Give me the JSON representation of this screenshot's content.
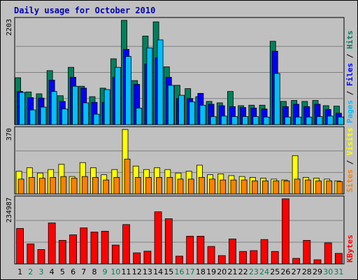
{
  "chart_data": {
    "type": "bar",
    "title": "Daily usage for October 2010",
    "days": [
      "1",
      "2",
      "3",
      "4",
      "5",
      "6",
      "7",
      "8",
      "9",
      "10",
      "11",
      "12",
      "13",
      "14",
      "15",
      "16",
      "17",
      "18",
      "19",
      "20",
      "21",
      "22",
      "23",
      "24",
      "25",
      "26",
      "27",
      "28",
      "29",
      "30",
      "31"
    ],
    "weekend_days": [
      "2",
      "3",
      "9",
      "10",
      "16",
      "17",
      "23",
      "24",
      "30",
      "31"
    ],
    "colors": {
      "hits": "#00805c",
      "files": "#0000ff",
      "pages": "#00c0ff",
      "visits": "#ffff00",
      "sites": "#ff8000",
      "kbytes": "#ff0000",
      "weekday_label": "#000000",
      "weekend_label": "#00805c",
      "title": "#0000b0",
      "background": "#c0c0c0"
    },
    "panels": [
      {
        "id": "hits_files_pages",
        "max_label": "2203",
        "ymax": 2203,
        "legend": [
          {
            "text": "Hits",
            "color": "#00805c"
          },
          {
            "text": "Files",
            "color": "#0000ff"
          },
          {
            "text": "Pages",
            "color": "#00c0ff"
          }
        ],
        "series": [
          {
            "key": "hits",
            "values": [
              990,
              690,
              650,
              1140,
              610,
              1210,
              810,
              590,
              770,
              1390,
              2203,
              930,
              1870,
              2170,
              1220,
              830,
              760,
              590,
              490,
              460,
              700,
              400,
              410,
              410,
              1760,
              490,
              510,
              490,
              510,
              400,
              390
            ]
          },
          {
            "key": "files",
            "values": [
              700,
              570,
              560,
              940,
              490,
              1000,
              770,
              470,
              470,
              1000,
              1590,
              850,
              1280,
              1410,
              1000,
              550,
              550,
              660,
              430,
              400,
              380,
              360,
              350,
              330,
              1550,
              380,
              430,
              380,
              430,
              320,
              240
            ]
          },
          {
            "key": "pages",
            "values": [
              680,
              310,
              370,
              700,
              330,
              810,
              460,
              220,
              740,
              1210,
              1440,
              350,
              1620,
              1790,
              830,
              620,
              480,
              410,
              170,
              180,
              170,
              170,
              170,
              160,
              1080,
              160,
              160,
              160,
              170,
              180,
              160
            ]
          }
        ]
      },
      {
        "id": "visits_sites",
        "max_label": "370",
        "ymax": 370,
        "legend": [
          {
            "text": "Visits",
            "color": "#ffff00"
          },
          {
            "text": "Sites",
            "color": "#ff8000"
          }
        ],
        "series": [
          {
            "key": "visits",
            "values": [
              130,
              150,
              120,
              140,
              170,
              100,
              180,
              150,
              110,
              140,
              370,
              160,
              140,
              150,
              140,
              120,
              130,
              165,
              110,
              115,
              105,
              100,
              95,
              90,
              85,
              80,
              220,
              95,
              90,
              85,
              75
            ]
          },
          {
            "key": "sites",
            "values": [
              85,
              95,
              90,
              95,
              100,
              90,
              100,
              95,
              80,
              95,
              200,
              95,
              95,
              95,
              95,
              85,
              85,
              95,
              85,
              80,
              80,
              80,
              75,
              75,
              75,
              75,
              85,
              80,
              75,
              75,
              70
            ]
          }
        ]
      },
      {
        "id": "kbytes",
        "max_label": "234987",
        "ymax": 234987,
        "legend": [
          {
            "text": "KBytes",
            "color": "#ff0000"
          }
        ],
        "series": [
          {
            "key": "kbytes",
            "values": [
              128000,
              72000,
              52000,
              148000,
              85000,
              105000,
              130000,
              115000,
              118000,
              68000,
              142000,
              40000,
              46000,
              188000,
              163000,
              28000,
              100000,
              100000,
              63000,
              30000,
              90000,
              45000,
              48000,
              88000,
              45000,
              234987,
              20000,
              85000,
              15000,
              76000,
              38000
            ]
          }
        ]
      }
    ]
  }
}
